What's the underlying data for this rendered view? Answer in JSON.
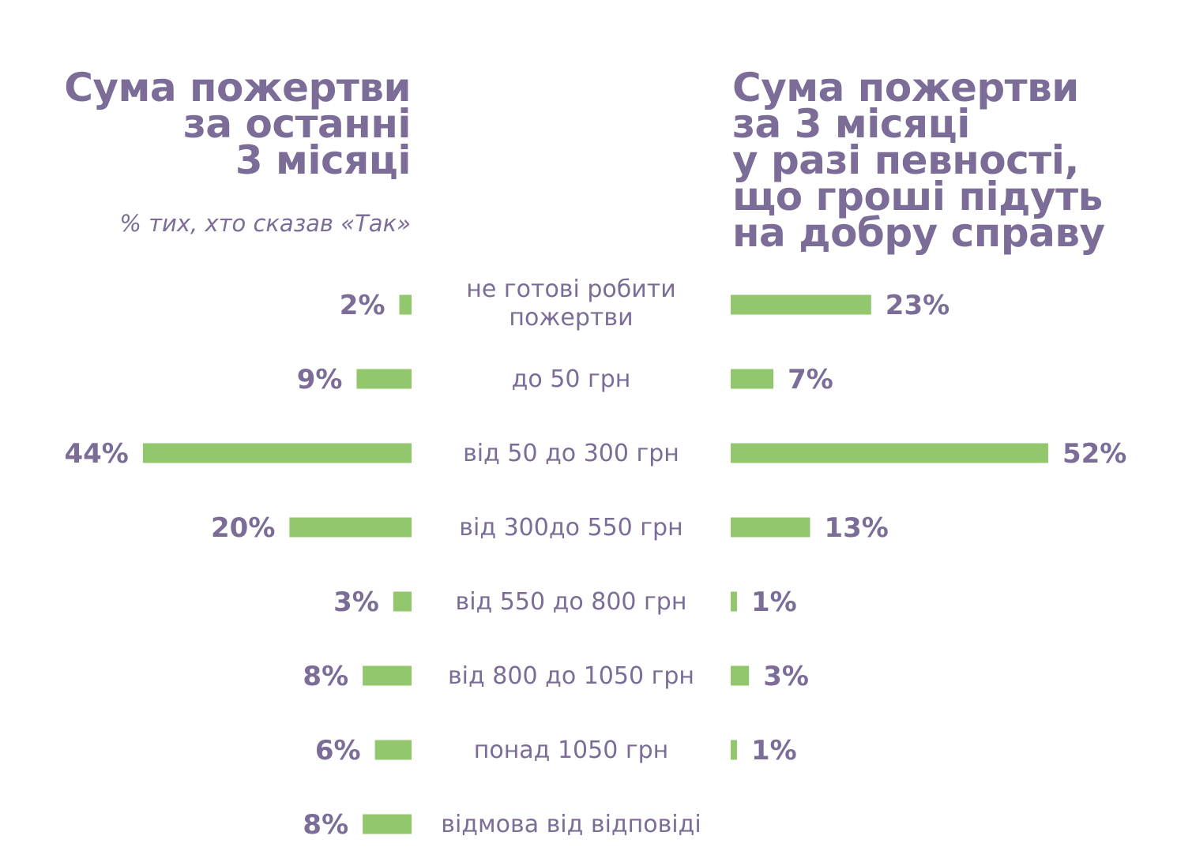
{
  "left_panel": {
    "title_lines": [
      "Сума пожертви",
      "за останні",
      "3 місяці"
    ],
    "subtitle": "% тих, хто сказав «Так»"
  },
  "right_panel": {
    "title_lines": [
      "Сума пожертви",
      "за 3 місяці",
      "у разі певності,",
      "що гроші підуть",
      "на добру справу"
    ]
  },
  "colors": {
    "bar": "#92c76e",
    "text": "#7b6d98"
  },
  "chart_data": {
    "type": "bar",
    "orientation": "horizontal-butterfly",
    "categories": [
      [
        "не готові робити",
        "пожертви"
      ],
      [
        "до 50 грн"
      ],
      [
        "від 50 до 300 грн"
      ],
      [
        "від 300до 550 грн"
      ],
      [
        "від 550 до 800 грн"
      ],
      [
        "від 800 до 1050 грн"
      ],
      [
        "понад 1050 грн"
      ],
      [
        "відмова від відповіді"
      ]
    ],
    "series": [
      {
        "side": "left",
        "values": [
          2,
          9,
          44,
          20,
          3,
          8,
          6,
          8
        ],
        "labels": [
          "2%",
          "9%",
          "44%",
          "20%",
          "3%",
          "8%",
          "6%",
          "8%"
        ]
      },
      {
        "side": "right",
        "values": [
          23,
          7,
          52,
          13,
          1,
          3,
          1,
          null
        ],
        "labels": [
          "23%",
          "7%",
          "52%",
          "13%",
          "1%",
          "3%",
          "1%",
          null
        ]
      }
    ]
  }
}
